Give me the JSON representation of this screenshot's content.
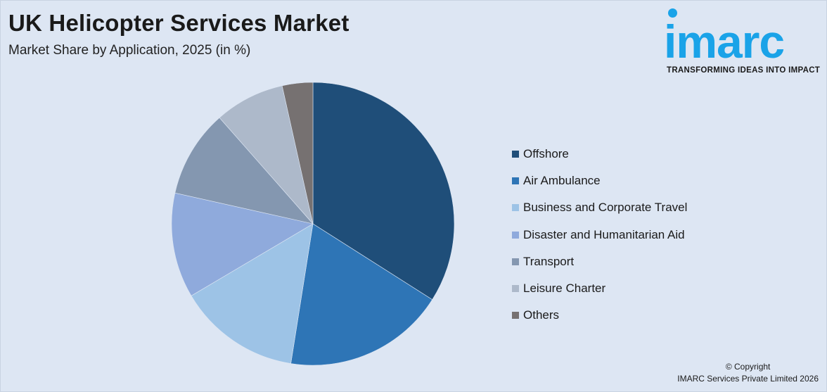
{
  "header": {
    "title": "UK Helicopter Services Market",
    "subtitle": "Market Share by Application, 2025 (in %)"
  },
  "logo": {
    "word": "imarc",
    "tagline": "TRANSFORMING IDEAS INTO IMPACT",
    "color": "#1aa3e8"
  },
  "footer": {
    "line1": "© Copyright",
    "line2": "IMARC Services Private Limited 2026"
  },
  "chart_data": {
    "type": "pie",
    "categories": [
      "Offshore",
      "Air Ambulance",
      "Business and Corporate Travel",
      "Disaster and Humanitarian Aid",
      "Transport",
      "Leisure Charter",
      "Others"
    ],
    "values": [
      34,
      18.5,
      14,
      12,
      10,
      8,
      3.5
    ],
    "colors": [
      "#1f4e79",
      "#2e75b6",
      "#9dc3e6",
      "#8faadc",
      "#8497b0",
      "#adb9ca",
      "#767171"
    ],
    "legend_position": "right"
  }
}
